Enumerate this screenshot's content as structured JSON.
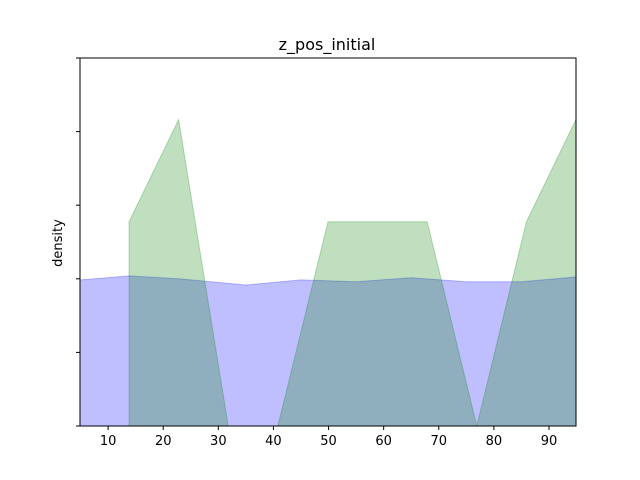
{
  "chart_data": {
    "type": "area",
    "title": "z_pos_initial",
    "xlabel": "",
    "ylabel": "density",
    "xlim": [
      4.9,
      94.9
    ],
    "ylim": [
      0,
      1.0
    ],
    "x_ticks": [
      10,
      20,
      30,
      40,
      50,
      60,
      70,
      80,
      90
    ],
    "y_ticks": [
      0,
      0.2,
      0.4,
      0.6,
      0.8,
      1.0
    ],
    "y_tick_labels_visible": false,
    "grid": false,
    "legend": "none",
    "series": [
      {
        "color": "#0000ff",
        "alpha": 0.25,
        "points": [
          [
            4.9,
            0.397
          ],
          [
            13.8,
            0.408
          ],
          [
            22.8,
            0.4
          ],
          [
            35.0,
            0.383
          ],
          [
            45.0,
            0.397
          ],
          [
            55.0,
            0.392
          ],
          [
            65.0,
            0.403
          ],
          [
            75.0,
            0.392
          ],
          [
            85.0,
            0.392
          ],
          [
            94.9,
            0.405
          ]
        ]
      },
      {
        "color": "#008000",
        "alpha": 0.25,
        "points": [
          [
            13.8,
            0
          ],
          [
            13.8,
            0.555
          ],
          [
            22.8,
            0.833
          ],
          [
            31.8,
            0
          ],
          [
            40.8,
            0
          ],
          [
            49.9,
            0.555
          ],
          [
            67.9,
            0.555
          ],
          [
            76.9,
            0
          ],
          [
            85.9,
            0.555
          ],
          [
            94.9,
            0.833
          ]
        ]
      }
    ]
  }
}
